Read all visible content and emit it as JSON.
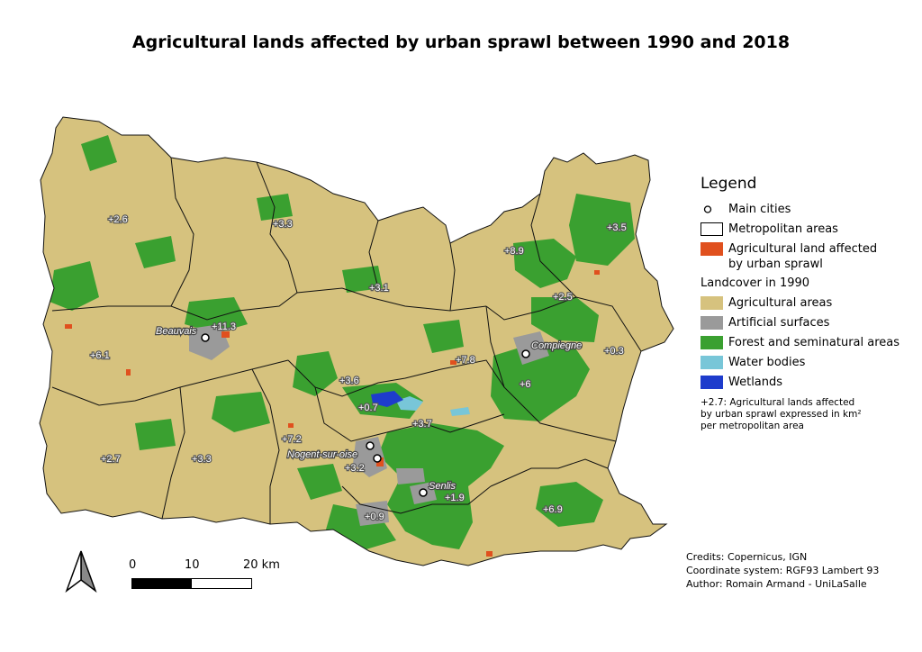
{
  "title": "Agricultural lands affected by urban sprawl between 1990 and 2018",
  "colors": {
    "agricultural": "#d6c27e",
    "artificial": "#9a9a9a",
    "forest": "#3aa030",
    "water": "#78c6d8",
    "wetlands": "#1e3ccc",
    "sprawl": "#e0501e"
  },
  "legend": {
    "title": "Legend",
    "main_cities": "Main cities",
    "metro_areas": "Metropolitan areas",
    "sprawl_line1": "Agricultural land affected",
    "sprawl_line2": "by urban sprawl",
    "landcover_header": "Landcover in 1990",
    "agricultural": "Agricultural areas",
    "artificial": "Artificial surfaces",
    "forest": "Forest and seminatural areas",
    "water": "Water bodies",
    "wetlands": "Wetlands",
    "note_line1": "+2.7: Agricultural lands affected",
    "note_line2": "by urban sprawl expressed in km²",
    "note_line3": "per metropolitan area"
  },
  "cities": [
    "Beauvais",
    "Compiegne",
    "Nogent-sur-oise",
    "Senlis"
  ],
  "area_values": [
    "+2.6",
    "+3.3",
    "+8.9",
    "+3.5",
    "+3.1",
    "+2.5",
    "+11.3",
    "+6.1",
    "+0.3",
    "+7.8",
    "+3.6",
    "+6",
    "+0.7",
    "+3.7",
    "+7.2",
    "+2.7",
    "+3.3",
    "+3.2",
    "+1.9",
    "+0.9",
    "+6.9"
  ],
  "scale": {
    "t0": "0",
    "t1": "10",
    "t2": "20 km"
  },
  "credits": {
    "line1": "Credits: Copernicus, IGN",
    "line2": "Coordinate system: RGF93 Lambert 93",
    "line3": "Author: Romain Armand - UniLaSalle"
  }
}
